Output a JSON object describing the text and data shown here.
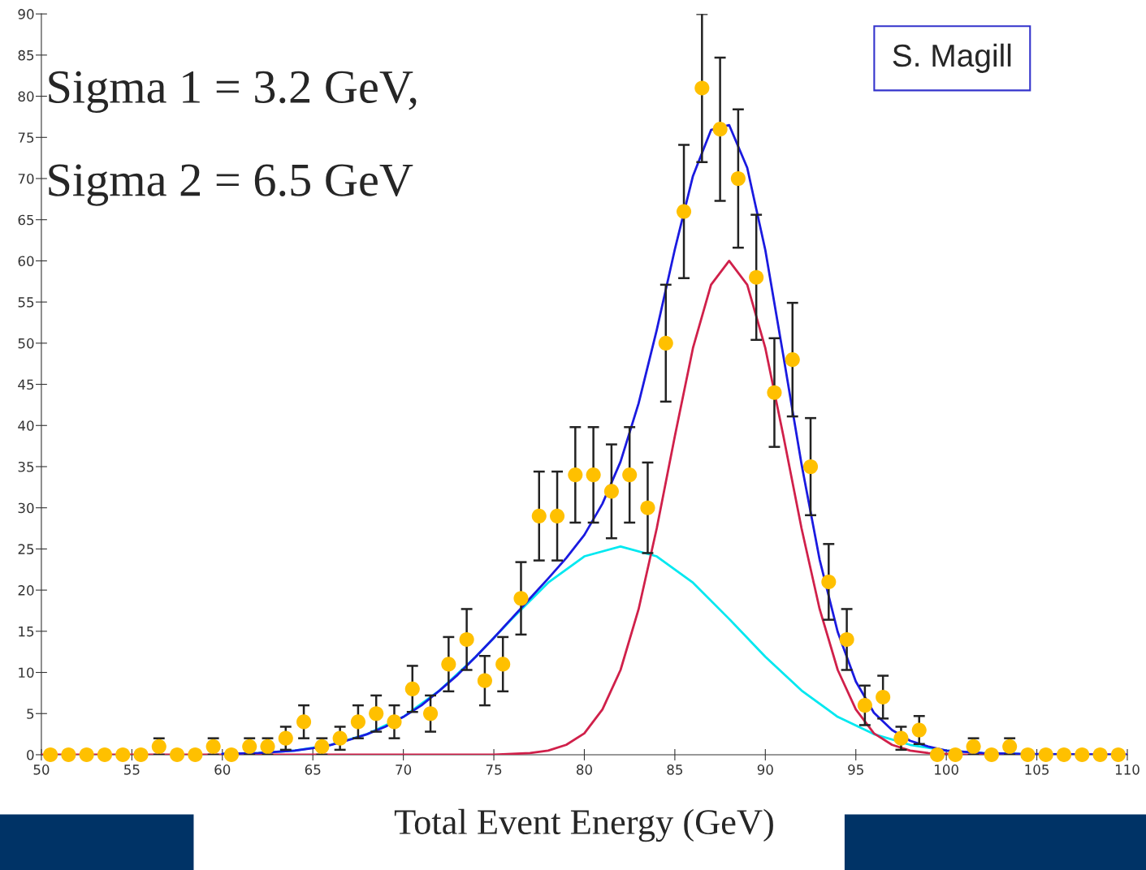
{
  "chart_data": {
    "type": "scatter",
    "xlabel": "Total Event Energy (GeV)",
    "annotations": [
      "Sigma 1 = 3.2 GeV,",
      "Sigma 2 = 6.5 GeV",
      "S. Magill"
    ],
    "xlim": [
      50,
      110
    ],
    "xticks": [
      50,
      55,
      60,
      65,
      70,
      75,
      80,
      85,
      90,
      95,
      100,
      105,
      110
    ],
    "ylim": [
      0,
      90
    ],
    "yticks": [
      0,
      5,
      10,
      15,
      20,
      25,
      30,
      35,
      40,
      45,
      50,
      55,
      60,
      65,
      70,
      75,
      80,
      85,
      90
    ],
    "grid": false,
    "legend": false,
    "series": [
      {
        "type": "line",
        "color": "#00e8f0",
        "marker": "none",
        "x": [
          60,
          62,
          64,
          66,
          68,
          70,
          72,
          74,
          76,
          78,
          80,
          82,
          84,
          86,
          88,
          90,
          92,
          94,
          96,
          98,
          100,
          102,
          104
        ],
        "values": [
          0.1,
          0.2,
          0.5,
          1.2,
          2.5,
          4.6,
          7.8,
          11.9,
          16.5,
          20.9,
          24.1,
          25.3,
          24.1,
          20.9,
          16.5,
          11.9,
          7.8,
          4.6,
          2.5,
          1.2,
          0.5,
          0.2,
          0.1
        ]
      },
      {
        "type": "line",
        "color": "#d0204a",
        "marker": "none",
        "x": [
          50,
          75,
          76,
          77,
          78,
          79,
          80,
          81,
          82,
          83,
          84,
          85,
          86,
          87,
          88,
          89,
          90,
          91,
          92,
          93,
          94,
          95,
          96,
          97,
          98,
          99,
          100,
          101,
          110
        ],
        "values": [
          0,
          0,
          0.1,
          0.2,
          0.5,
          1.2,
          2.6,
          5.5,
          10.3,
          17.7,
          27.5,
          38.7,
          49.4,
          57.1,
          60,
          57.1,
          49.4,
          38.7,
          27.5,
          17.7,
          10.3,
          5.5,
          2.6,
          1.2,
          0.5,
          0.2,
          0.1,
          0,
          0
        ]
      },
      {
        "type": "line",
        "color": "#1a1ae0",
        "marker": "none",
        "x": [
          60,
          62,
          64,
          65,
          66,
          67,
          68,
          69,
          70,
          71,
          72,
          73,
          74,
          75,
          76,
          77,
          78,
          79,
          80,
          81,
          82,
          83,
          84,
          85,
          86,
          87,
          88,
          89,
          90,
          91,
          92,
          93,
          94,
          95,
          96,
          97,
          98,
          99,
          100,
          102,
          104,
          110
        ],
        "values": [
          0.1,
          0.2,
          0.5,
          0.8,
          1.2,
          1.8,
          2.5,
          3.4,
          4.6,
          6.0,
          7.8,
          9.7,
          11.9,
          14.2,
          16.6,
          19.0,
          21.4,
          23.9,
          26.7,
          30.5,
          35.6,
          42.7,
          51.6,
          61.4,
          70.3,
          75.9,
          76.5,
          71.3,
          61.3,
          48.4,
          35.3,
          23.7,
          14.9,
          8.9,
          5.1,
          3.0,
          1.7,
          1.0,
          0.5,
          0.2,
          0.1,
          0
        ]
      },
      {
        "color": "#ffc000",
        "marker": "circle",
        "x": [
          50.5,
          51.5,
          52.5,
          53.5,
          54.5,
          55.5,
          56.5,
          57.5,
          58.5,
          59.5,
          60.5,
          61.5,
          62.5,
          63.5,
          64.5,
          65.5,
          66.5,
          67.5,
          68.5,
          69.5,
          70.5,
          71.5,
          72.5,
          73.5,
          74.5,
          75.5,
          76.5,
          77.5,
          78.5,
          79.5,
          80.5,
          81.5,
          82.5,
          83.5,
          84.5,
          85.5,
          86.5,
          87.5,
          88.5,
          89.5,
          90.5,
          91.5,
          92.5,
          93.5,
          94.5,
          95.5,
          96.5,
          97.5,
          98.5,
          99.5,
          100.5,
          101.5,
          102.5,
          103.5,
          104.5,
          105.5,
          106.5,
          107.5,
          108.5,
          109.5
        ],
        "values": [
          0,
          0,
          0,
          0,
          0,
          0,
          1,
          0,
          0,
          1,
          0,
          1,
          1,
          2,
          4,
          1,
          2,
          4,
          5,
          4,
          8,
          5,
          11,
          14,
          9,
          11,
          19,
          29,
          29,
          34,
          34,
          32,
          34,
          30,
          50,
          66,
          81,
          76,
          70,
          58,
          44,
          48,
          35,
          21,
          14,
          6,
          7,
          2,
          3,
          0,
          0,
          1,
          0,
          1,
          0,
          0,
          0,
          0,
          0,
          0
        ],
        "errors": [
          null,
          null,
          null,
          null,
          null,
          null,
          1,
          null,
          null,
          1,
          null,
          1,
          1,
          1.4,
          2,
          1,
          1.4,
          2,
          2.2,
          2,
          2.8,
          2.2,
          3.3,
          3.7,
          3,
          3.3,
          4.4,
          5.4,
          5.4,
          5.8,
          5.8,
          5.7,
          5.8,
          5.5,
          7.1,
          8.1,
          9,
          8.7,
          8.4,
          7.6,
          6.6,
          6.9,
          5.9,
          4.6,
          3.7,
          2.4,
          2.6,
          1.4,
          1.7,
          null,
          null,
          1,
          null,
          1,
          null,
          null,
          null,
          null,
          null,
          null
        ]
      }
    ]
  }
}
